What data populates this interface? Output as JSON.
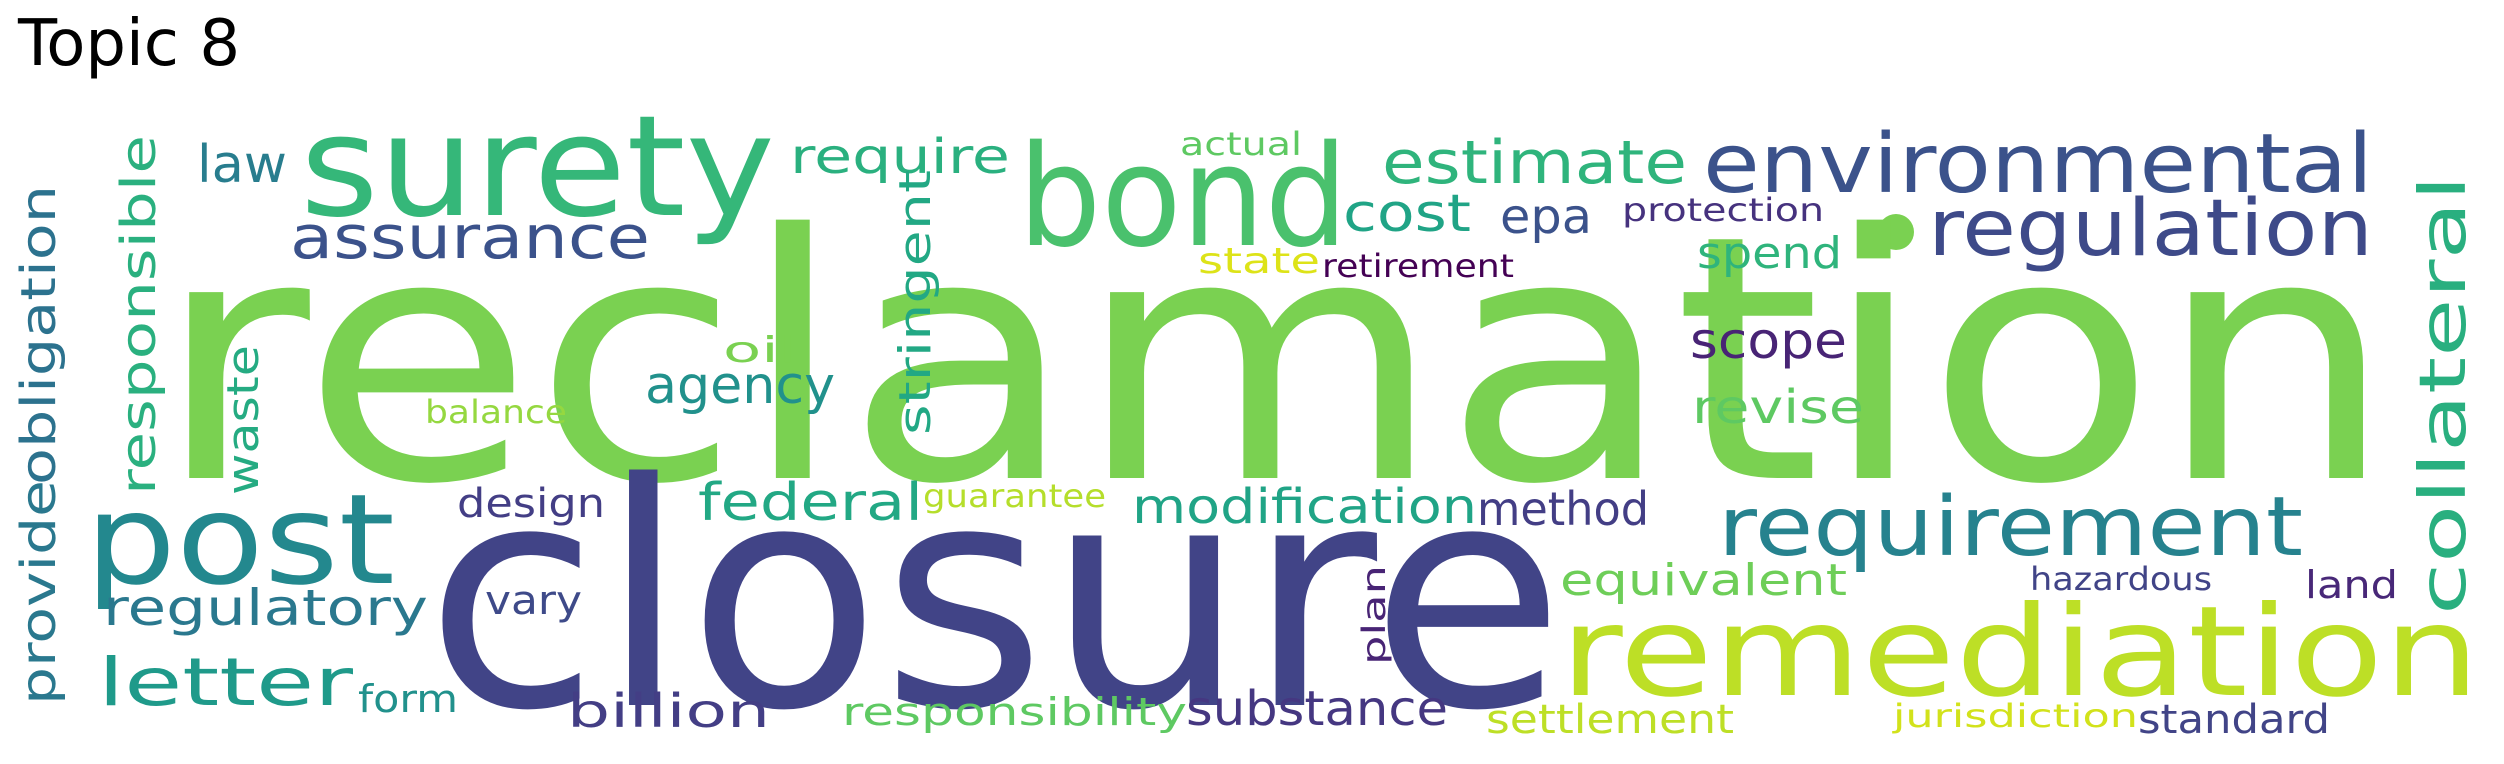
{
  "title": "Topic 8",
  "words": [
    {
      "text": "reclamation",
      "color": "#7ad151"
    },
    {
      "text": "closure",
      "color": "#414487"
    },
    {
      "text": "surety",
      "color": "#35b779"
    },
    {
      "text": "bond",
      "color": "#4ac16d"
    },
    {
      "text": "post",
      "color": "#23888e"
    },
    {
      "text": "remediation",
      "color": "#bddf26"
    },
    {
      "text": "environmental",
      "color": "#3b528b"
    },
    {
      "text": "requirement",
      "color": "#26828e"
    },
    {
      "text": "regulation",
      "color": "#3e4a89"
    },
    {
      "text": "collateral",
      "color": "#29af7f"
    },
    {
      "text": "assurance",
      "color": "#3b528b"
    },
    {
      "text": "estimate",
      "color": "#2fb47c"
    },
    {
      "text": "letter",
      "color": "#1f9a8a"
    },
    {
      "text": "regulatory",
      "color": "#2a788e"
    },
    {
      "text": "obligation",
      "color": "#2c728e"
    },
    {
      "text": "responsible",
      "color": "#2ab07f"
    },
    {
      "text": "provide",
      "color": "#2a788e"
    },
    {
      "text": "require",
      "color": "#2ab07f"
    },
    {
      "text": "law",
      "color": "#287d8e"
    },
    {
      "text": "cost",
      "color": "#20a486"
    },
    {
      "text": "epa",
      "color": "#3b528b"
    },
    {
      "text": "spend",
      "color": "#2fb47c"
    },
    {
      "text": "agency",
      "color": "#21918c"
    },
    {
      "text": "stringent",
      "color": "#22a884"
    },
    {
      "text": "waste",
      "color": "#25ab82"
    },
    {
      "text": "scope",
      "color": "#482475"
    },
    {
      "text": "revise",
      "color": "#5ec962"
    },
    {
      "text": "federal",
      "color": "#22a884"
    },
    {
      "text": "modification",
      "color": "#20a486"
    },
    {
      "text": "method",
      "color": "#433e85"
    },
    {
      "text": "equivalent",
      "color": "#6ece58"
    },
    {
      "text": "substance",
      "color": "#453781"
    },
    {
      "text": "billion",
      "color": "#433e85"
    },
    {
      "text": "settlement",
      "color": "#bddf26"
    },
    {
      "text": "standard",
      "color": "#414487"
    },
    {
      "text": "design",
      "color": "#433e85"
    },
    {
      "text": "vary",
      "color": "#3e4a89"
    },
    {
      "text": "form",
      "color": "#21918c"
    },
    {
      "text": "responsibility",
      "color": "#5ec962"
    },
    {
      "text": "land",
      "color": "#482878"
    },
    {
      "text": "hazardous",
      "color": "#414487"
    },
    {
      "text": "jurisdiction",
      "color": "#d2e21b"
    },
    {
      "text": "plan",
      "color": "#482475"
    },
    {
      "text": "guarantee",
      "color": "#b5de2b"
    },
    {
      "text": "oil",
      "color": "#7ad151"
    },
    {
      "text": "balance",
      "color": "#95d840"
    },
    {
      "text": "actual",
      "color": "#5ec962"
    },
    {
      "text": "protection",
      "color": "#46327e"
    },
    {
      "text": "state",
      "color": "#dde318"
    },
    {
      "text": "retirement",
      "color": "#440154"
    }
  ]
}
